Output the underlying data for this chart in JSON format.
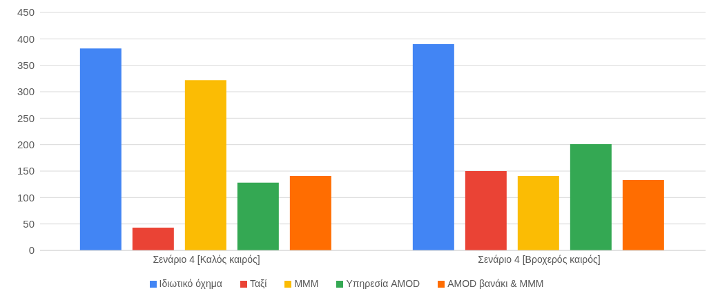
{
  "chart_data": {
    "type": "bar",
    "categories": [
      "Σενάριο 4 [Καλός καιρός]",
      "Σενάριο 4 [Βροχερός καιρός]"
    ],
    "series": [
      {
        "name": "Ιδιωτικό όχημα",
        "color": "#4285f4",
        "values": [
          382,
          390
        ]
      },
      {
        "name": "Ταξί",
        "color": "#ea4335",
        "values": [
          43,
          150
        ]
      },
      {
        "name": "ΜΜΜ",
        "color": "#fbbc04",
        "values": [
          322,
          141
        ]
      },
      {
        "name": "Υπηρεσία AMOD",
        "color": "#34a853",
        "values": [
          128,
          201
        ]
      },
      {
        "name": "AMOD βανάκι & ΜΜΜ",
        "color": "#ff6d01",
        "values": [
          141,
          133
        ]
      }
    ],
    "ylim": [
      0,
      450
    ],
    "yticks": [
      0,
      50,
      100,
      150,
      200,
      250,
      300,
      350,
      400,
      450
    ],
    "grid": "y",
    "legend": "bottom"
  }
}
